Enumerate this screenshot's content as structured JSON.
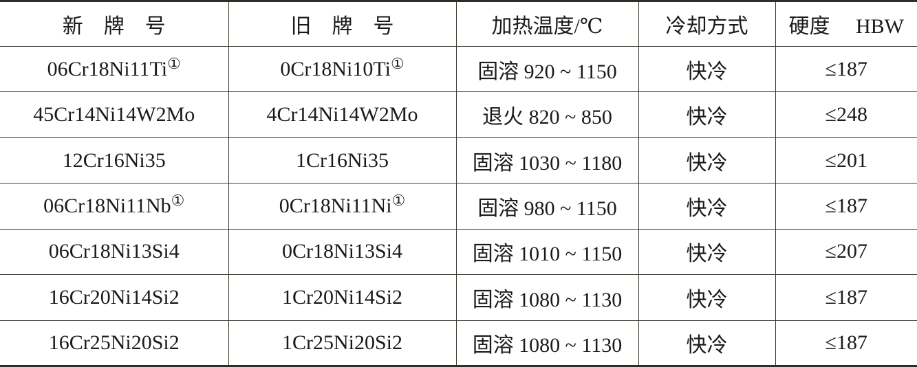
{
  "headers": {
    "new_grade": "新　牌　号",
    "old_grade": "旧　牌　号",
    "heating_temp": "加热温度/℃",
    "cooling": "冷却方式",
    "hardness": "硬度　 HBW"
  },
  "rows": [
    {
      "new": "06Cr18Ni11Ti",
      "new_note": "①",
      "old": "0Cr18Ni10Ti",
      "old_note": "①",
      "temp": "固溶 920 ~ 1150",
      "cooling": "快冷",
      "hardness": "≤187"
    },
    {
      "new": "45Cr14Ni14W2Mo",
      "new_note": "",
      "old": "4Cr14Ni14W2Mo",
      "old_note": "",
      "temp": "退火 820 ~ 850",
      "cooling": "快冷",
      "hardness": "≤248"
    },
    {
      "new": "12Cr16Ni35",
      "new_note": "",
      "old": "1Cr16Ni35",
      "old_note": "",
      "temp": "固溶 1030 ~ 1180",
      "cooling": "快冷",
      "hardness": "≤201"
    },
    {
      "new": "06Cr18Ni11Nb",
      "new_note": "①",
      "old": "0Cr18Ni11Ni",
      "old_note": "①",
      "temp": "固溶 980 ~ 1150",
      "cooling": "快冷",
      "hardness": "≤187"
    },
    {
      "new": "06Cr18Ni13Si4",
      "new_note": "",
      "old": "0Cr18Ni13Si4",
      "old_note": "",
      "temp": "固溶 1010 ~ 1150",
      "cooling": "快冷",
      "hardness": "≤207"
    },
    {
      "new": "16Cr20Ni14Si2",
      "new_note": "",
      "old": "1Cr20Ni14Si2",
      "old_note": "",
      "temp": "固溶 1080 ~ 1130",
      "cooling": "快冷",
      "hardness": "≤187"
    },
    {
      "new": "16Cr25Ni20Si2",
      "new_note": "",
      "old": "1Cr25Ni20Si2",
      "old_note": "",
      "temp": "固溶 1080 ~ 1130",
      "cooling": "快冷",
      "hardness": "≤187"
    }
  ]
}
